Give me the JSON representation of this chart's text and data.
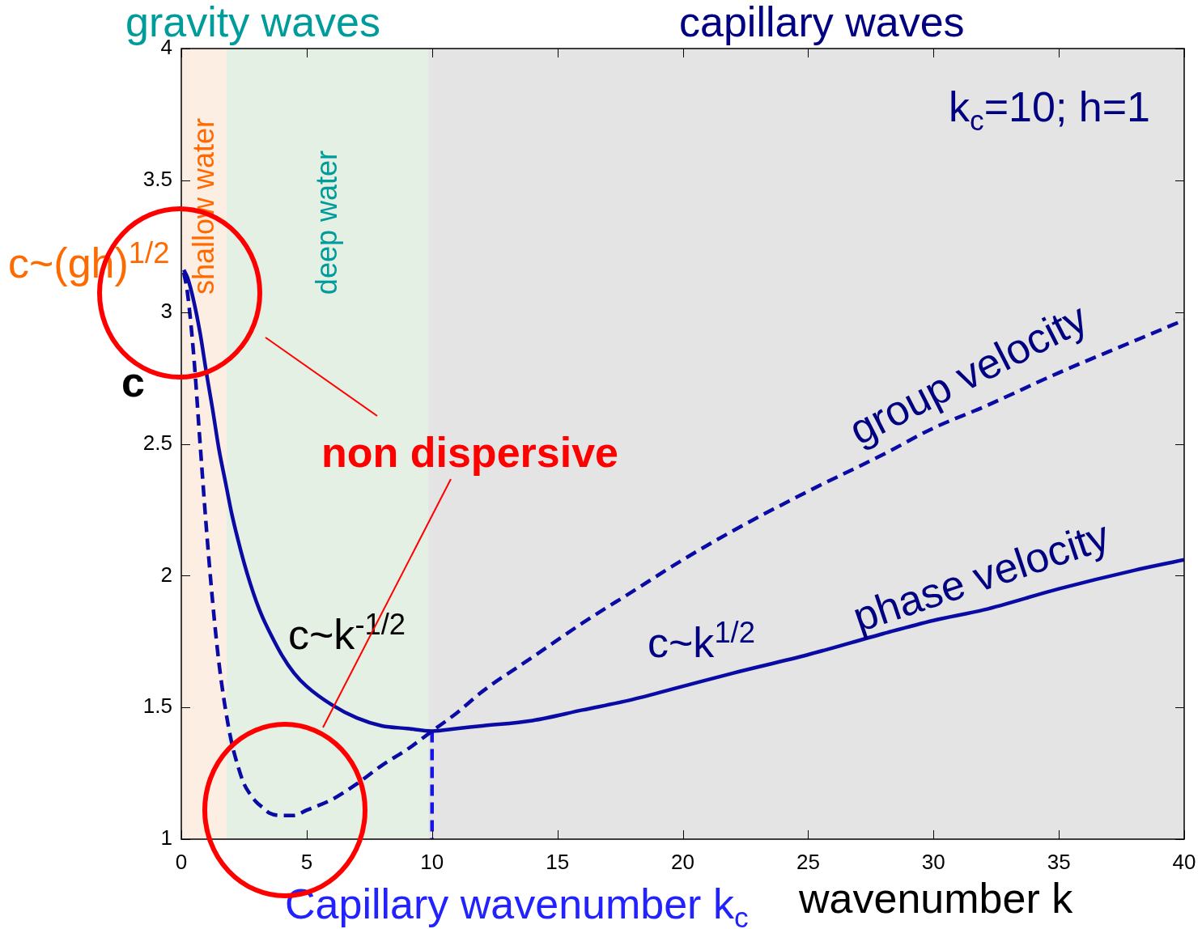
{
  "chart_data": {
    "type": "line",
    "xlabel": "wavenumber k",
    "ylabel": "c",
    "annotations": [
      "gravity waves",
      "capillary waves",
      "k$_{c}$=10; h=1",
      "c~(gh)$^{1/2}$",
      "non dispersive",
      "c~k$^{-1/2}$",
      "c~k$^{1/2}$",
      "Capillary wavenumber k$_{c}$"
    ],
    "x": [
      0.1,
      0.25,
      0.5,
      0.75,
      1,
      1.25,
      1.5,
      1.75,
      2,
      2.25,
      2.5,
      2.75,
      3,
      3.25,
      3.5,
      4,
      4.5,
      5,
      6,
      7,
      8,
      9,
      10,
      11,
      12,
      14,
      16,
      18,
      20,
      22,
      25,
      28,
      30,
      32,
      35,
      38,
      40
    ],
    "series": [
      {
        "name": "phase velocity",
        "color": "#0a0aa5",
        "line_style": "solid",
        "values": [
          3.16,
          3.13,
          3.04,
          2.92,
          2.77,
          2.63,
          2.48,
          2.36,
          2.24,
          2.14,
          2.05,
          1.97,
          1.9,
          1.84,
          1.79,
          1.7,
          1.63,
          1.58,
          1.51,
          1.46,
          1.43,
          1.42,
          1.41,
          1.42,
          1.43,
          1.45,
          1.49,
          1.53,
          1.58,
          1.63,
          1.7,
          1.78,
          1.83,
          1.87,
          1.95,
          2.02,
          2.06
        ]
      },
      {
        "name": "group velocity",
        "color": "#0a0aa5",
        "line_style": "dashed",
        "values": [
          3.15,
          3.07,
          2.83,
          2.5,
          2.18,
          1.9,
          1.67,
          1.5,
          1.37,
          1.28,
          1.21,
          1.17,
          1.14,
          1.12,
          1.1,
          1.09,
          1.09,
          1.11,
          1.15,
          1.21,
          1.28,
          1.34,
          1.41,
          1.48,
          1.56,
          1.69,
          1.82,
          1.94,
          2.06,
          2.17,
          2.32,
          2.46,
          2.56,
          2.64,
          2.77,
          2.89,
          2.97
        ]
      },
      {
        "color": "#1515e6",
        "line_style": "dashed",
        "x": [
          10,
          10
        ],
        "values": [
          1.41,
          1
        ]
      }
    ],
    "xlim": [
      0,
      40
    ],
    "ylim": [
      1,
      4
    ],
    "xticks": [
      0,
      5,
      10,
      15,
      20,
      25,
      30,
      35,
      40
    ],
    "yticks": [
      1,
      1.5,
      2,
      2.5,
      3,
      3.5,
      4
    ],
    "bands": [
      {
        "axis": "x",
        "from": 0,
        "to": 1.8,
        "label": "shallow water",
        "color": "#fdeee4"
      },
      {
        "axis": "x",
        "from": 1.8,
        "to": 9.85,
        "label": "deep water",
        "color": "#e4f0e3"
      },
      {
        "axis": "x",
        "from": 9.85,
        "to": 40,
        "color": "#e4e4e4"
      }
    ],
    "grid": false,
    "legend": false,
    "marker": "none"
  }
}
